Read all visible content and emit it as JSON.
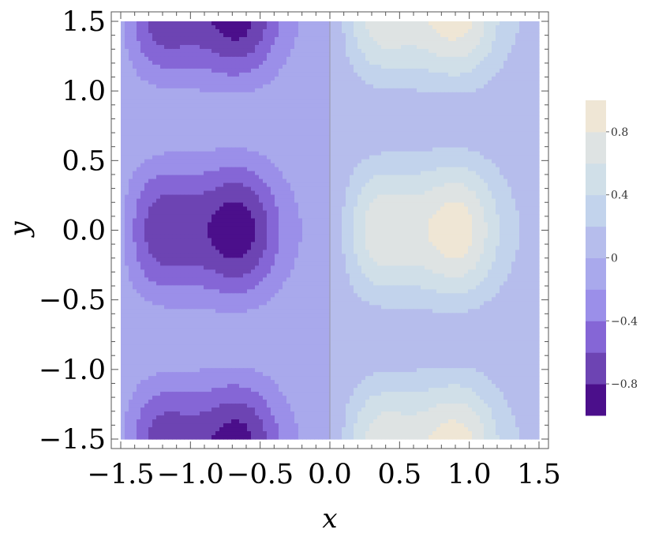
{
  "chart_data": {
    "type": "contour",
    "xlabel": "x",
    "ylabel": "y",
    "xlim": [
      -1.5,
      1.5
    ],
    "ylim": [
      -1.5,
      1.5
    ],
    "x_ticks": [
      "−1.5",
      "−1.0",
      "−0.5",
      "0.0",
      "0.5",
      "1.0",
      "1.5"
    ],
    "x_tick_values": [
      -1.5,
      -1.0,
      -0.5,
      0.0,
      0.5,
      1.0,
      1.5
    ],
    "y_ticks": [
      "1.5",
      "1.0",
      "0.5",
      "0.0",
      "−0.5",
      "−1.0",
      "−1.5"
    ],
    "y_tick_values": [
      1.5,
      1.0,
      0.5,
      0.0,
      -0.5,
      -1.0,
      -1.5
    ],
    "colorbar": {
      "levels": [
        -1.0,
        -0.8,
        -0.6,
        -0.4,
        -0.2,
        0.0,
        0.2,
        0.4,
        0.6,
        0.8,
        1.0
      ],
      "colors": [
        "#4b0f8b",
        "#6d44b3",
        "#8566d6",
        "#9b8fe9",
        "#a9a9ec",
        "#b6bdec",
        "#c2d3ec",
        "#d0dfe8",
        "#dee3e3",
        "#efe6d5"
      ],
      "tick_labels": [
        "−0.8",
        "−0.4",
        "0",
        "0.4",
        "0.8"
      ],
      "tick_values": [
        -0.8,
        -0.4,
        0.0,
        0.4,
        0.8
      ]
    }
  }
}
